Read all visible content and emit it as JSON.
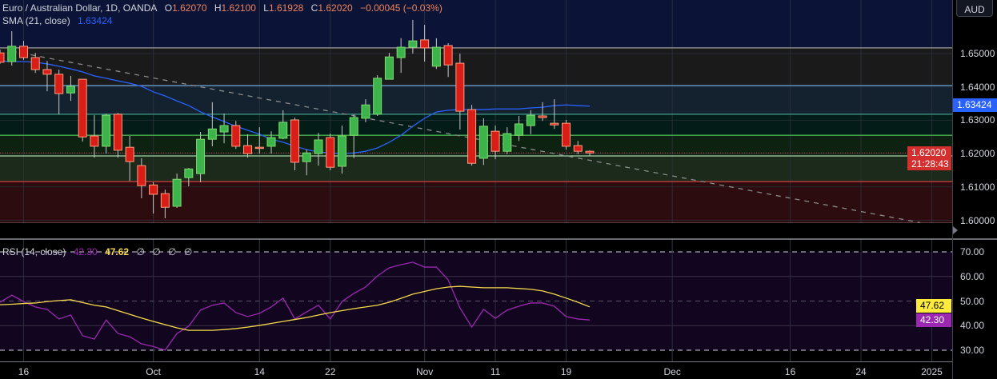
{
  "header": {
    "symbol": "Euro / Australian Dollar, 1D, OANDA",
    "open_label": "O",
    "open": "1.62070",
    "high_label": "H",
    "high": "1.62100",
    "low_label": "L",
    "low": "1.61928",
    "close_label": "C",
    "close": "1.62020",
    "change": "−0.00045 (−0.03%)",
    "sma_label": "SMA (21, close)",
    "sma_value": "1.63424",
    "currency": "AUD"
  },
  "rsi_legend": {
    "label": "RSI (14, close)",
    "rsi_value": "42.30",
    "ma_value": "47.62",
    "extras": [
      "∅",
      "∅",
      "∅",
      "∅"
    ]
  },
  "badges": {
    "sma": "1.63424",
    "price": "1.62020",
    "countdown": "21:28:43",
    "rsi_ma": "47.62",
    "rsi": "42.30"
  },
  "colors": {
    "up": "#3cb44b",
    "down": "#d91e18",
    "sma": "#2962ff",
    "rsi": "#9c27b0",
    "rsi_ma": "#f5d94a",
    "price_badge": "#d32f2f",
    "sma_badge": "#2962ff"
  },
  "chart_data": [
    {
      "type": "candlestick",
      "ylim": [
        1.5985,
        1.666
      ],
      "price_ticks": [
        "1.65000",
        "1.64000",
        "1.63000",
        "1.62000",
        "1.61000",
        "1.60000"
      ],
      "x_ticks": [
        {
          "label": "16",
          "date": "2024-09-16"
        },
        {
          "label": "Oct",
          "date": "2024-10-01"
        },
        {
          "label": "14",
          "date": "2024-10-14"
        },
        {
          "label": "22",
          "date": "2024-10-22"
        },
        {
          "label": "Nov",
          "date": "2024-11-01"
        },
        {
          "label": "11",
          "date": "2024-11-11"
        },
        {
          "label": "19",
          "date": "2024-11-19"
        },
        {
          "label": "Dec",
          "date": "2024-12-02"
        },
        {
          "label": "16",
          "date": "2024-12-16"
        },
        {
          "label": "24",
          "date": "2024-12-24"
        },
        {
          "label": "2025",
          "date": "2025-01-01"
        }
      ],
      "dates": [
        "2024-09-12",
        "2024-09-13",
        "2024-09-16",
        "2024-09-17",
        "2024-09-18",
        "2024-09-19",
        "2024-09-20",
        "2024-09-23",
        "2024-09-24",
        "2024-09-25",
        "2024-09-26",
        "2024-09-27",
        "2024-09-30",
        "2024-10-01",
        "2024-10-02",
        "2024-10-03",
        "2024-10-04",
        "2024-10-07",
        "2024-10-08",
        "2024-10-09",
        "2024-10-10",
        "2024-10-11",
        "2024-10-14",
        "2024-10-15",
        "2024-10-16",
        "2024-10-17",
        "2024-10-18",
        "2024-10-21",
        "2024-10-22",
        "2024-10-23",
        "2024-10-24",
        "2024-10-25",
        "2024-10-28",
        "2024-10-29",
        "2024-10-30",
        "2024-10-31",
        "2024-11-01",
        "2024-11-04",
        "2024-11-05",
        "2024-11-06",
        "2024-11-07",
        "2024-11-08",
        "2024-11-11",
        "2024-11-12",
        "2024-11-13",
        "2024-11-14",
        "2024-11-15",
        "2024-11-18",
        "2024-11-19",
        "2024-11-20",
        "2024-11-21"
      ],
      "ohlc": [
        [
          1.6502,
          1.6512,
          1.6469,
          1.6474
        ],
        [
          1.6476,
          1.6567,
          1.6464,
          1.6522
        ],
        [
          1.6522,
          1.6538,
          1.6481,
          1.6488
        ],
        [
          1.6488,
          1.6502,
          1.6442,
          1.6452
        ],
        [
          1.6452,
          1.6478,
          1.6387,
          1.6438
        ],
        [
          1.6438,
          1.6452,
          1.6318,
          1.638
        ],
        [
          1.6382,
          1.6433,
          1.6358,
          1.6402
        ],
        [
          1.6423,
          1.6423,
          1.6236,
          1.625
        ],
        [
          1.6253,
          1.6315,
          1.6188,
          1.6222
        ],
        [
          1.6222,
          1.632,
          1.62,
          1.6315
        ],
        [
          1.6318,
          1.6322,
          1.6188,
          1.621
        ],
        [
          1.6219,
          1.6253,
          1.6118,
          1.6176
        ],
        [
          1.6164,
          1.6186,
          1.6066,
          1.6104
        ],
        [
          1.6106,
          1.6114,
          1.602,
          1.6078
        ],
        [
          1.608,
          1.6092,
          1.6006,
          1.6039
        ],
        [
          1.6042,
          1.614,
          1.6037,
          1.6123
        ],
        [
          1.6128,
          1.6157,
          1.6102,
          1.6154
        ],
        [
          1.614,
          1.6265,
          1.6114,
          1.6243
        ],
        [
          1.6243,
          1.6354,
          1.6222,
          1.6274
        ],
        [
          1.6265,
          1.632,
          1.6231,
          1.6284
        ],
        [
          1.6284,
          1.6298,
          1.6214,
          1.6222
        ],
        [
          1.6224,
          1.6258,
          1.6188,
          1.62
        ],
        [
          1.6219,
          1.6279,
          1.62,
          1.6217
        ],
        [
          1.6222,
          1.6267,
          1.62,
          1.6248
        ],
        [
          1.6246,
          1.633,
          1.6243,
          1.6294
        ],
        [
          1.6301,
          1.6308,
          1.615,
          1.6174
        ],
        [
          1.6176,
          1.6212,
          1.6135,
          1.6202
        ],
        [
          1.62,
          1.6262,
          1.6164,
          1.6241
        ],
        [
          1.6248,
          1.626,
          1.615,
          1.6159
        ],
        [
          1.6162,
          1.6284,
          1.614,
          1.6253
        ],
        [
          1.6255,
          1.6318,
          1.6186,
          1.6308
        ],
        [
          1.6306,
          1.6363,
          1.6294,
          1.6346
        ],
        [
          1.6318,
          1.6435,
          1.6313,
          1.6426
        ],
        [
          1.6423,
          1.6502,
          1.6423,
          1.649
        ],
        [
          1.6488,
          1.6546,
          1.6442,
          1.6519
        ],
        [
          1.6519,
          1.6601,
          1.65,
          1.6538
        ],
        [
          1.6541,
          1.6586,
          1.6476,
          1.6517
        ],
        [
          1.6462,
          1.6546,
          1.6454,
          1.6519
        ],
        [
          1.6524,
          1.6531,
          1.643,
          1.6466
        ],
        [
          1.6471,
          1.65,
          1.6272,
          1.6327
        ],
        [
          1.6332,
          1.6346,
          1.6164,
          1.6171
        ],
        [
          1.6186,
          1.6306,
          1.6166,
          1.6282
        ],
        [
          1.6267,
          1.6284,
          1.6183,
          1.6207
        ],
        [
          1.6207,
          1.6279,
          1.6198,
          1.626
        ],
        [
          1.6255,
          1.6313,
          1.6238,
          1.6289
        ],
        [
          1.6284,
          1.633,
          1.6258,
          1.6315
        ],
        [
          1.6313,
          1.6354,
          1.6298,
          1.6308
        ],
        [
          1.6291,
          1.6363,
          1.6274,
          1.6286
        ],
        [
          1.6291,
          1.6301,
          1.6212,
          1.6222
        ],
        [
          1.6224,
          1.6238,
          1.6198,
          1.6207
        ],
        [
          1.6207,
          1.621,
          1.61928,
          1.6202
        ]
      ],
      "sma": [
        1.6478,
        1.6476,
        1.6476,
        1.6474,
        1.6469,
        1.6462,
        1.6454,
        1.6445,
        1.6433,
        1.6426,
        1.6418,
        1.6411,
        1.6402,
        1.6385,
        1.6373,
        1.6358,
        1.6344,
        1.6325,
        1.631,
        1.6296,
        1.6282,
        1.627,
        1.6258,
        1.6243,
        1.6234,
        1.6222,
        1.6212,
        1.6205,
        1.6202,
        1.62,
        1.6202,
        1.6207,
        1.6217,
        1.6234,
        1.6255,
        1.6282,
        1.6306,
        1.6325,
        1.633,
        1.6332,
        1.6332,
        1.6332,
        1.6334,
        1.6334,
        1.6334,
        1.6337,
        1.6339,
        1.6344,
        1.6346,
        1.6344,
        1.63424
      ],
      "levels": [
        {
          "price": 1.6517,
          "color": "#9e9e9e",
          "fill_above": "#0b1437"
        },
        {
          "price": 1.6404,
          "color": "#6aa6d8",
          "fill_above": "#1a1a1b"
        },
        {
          "price": 1.6318,
          "color": "#3f9e8e",
          "fill_above": "#142230"
        },
        {
          "price": 1.6255,
          "color": "#4caf50",
          "fill_above": "#031c18"
        },
        {
          "price": 1.6193,
          "color": "#a5d6a7",
          "fill_above": "#0e2212"
        },
        {
          "price": 1.6116,
          "color": "#d04040",
          "fill_above": "#1b2a1a"
        },
        {
          "price": 1.5991,
          "color": "#8a8a8a",
          "fill_above": "#2c0c0f"
        }
      ],
      "trendline": [
        {
          "date": "2024-09-13",
          "price": 1.6507
        },
        {
          "date": "2024-12-31",
          "price": 1.5993
        }
      ],
      "last_price": 1.6202,
      "grid": true
    },
    {
      "type": "line",
      "ylim": [
        25,
        75
      ],
      "y_ticks": [
        "70.00",
        "60.00",
        "50.00",
        "40.00",
        "30.00"
      ],
      "bands": {
        "upper": 70,
        "middle": 50,
        "lower": 30
      },
      "series": [
        {
          "name": "RSI",
          "values": [
            49.5,
            52.4,
            49.8,
            47.6,
            46.6,
            42.7,
            44.3,
            35.9,
            34.5,
            42.3,
            36.8,
            35.5,
            32.6,
            31.5,
            30.0,
            36.8,
            39.8,
            46.3,
            48.3,
            49.2,
            45.3,
            43.7,
            45.0,
            47.6,
            51.2,
            42.7,
            45.6,
            48.3,
            42.7,
            49.8,
            53.1,
            55.7,
            60.2,
            63.5,
            64.8,
            65.8,
            63.8,
            63.8,
            58.6,
            47.2,
            39.4,
            46.6,
            43.0,
            46.3,
            47.9,
            49.2,
            49.2,
            47.9,
            43.7,
            42.7,
            42.3
          ]
        },
        {
          "name": "RSI-based MA",
          "values": [
            48.5,
            48.7,
            49.0,
            49.2,
            49.8,
            50.2,
            50.5,
            49.4,
            48.3,
            47.6,
            46.1,
            44.6,
            43.1,
            41.7,
            40.4,
            39.1,
            38.1,
            38.1,
            38.1,
            38.4,
            38.8,
            39.4,
            40.1,
            40.9,
            41.7,
            42.5,
            43.3,
            44.3,
            45.3,
            46.1,
            46.9,
            47.6,
            48.3,
            49.5,
            51.1,
            52.8,
            53.9,
            55.0,
            55.7,
            56.0,
            55.7,
            55.4,
            55.4,
            55.4,
            55.1,
            54.8,
            54.1,
            52.8,
            51.2,
            49.5,
            47.62
          ]
        }
      ]
    }
  ]
}
